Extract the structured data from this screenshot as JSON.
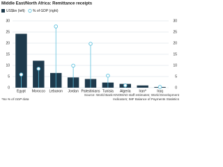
{
  "chart_data": {
    "type": "bar",
    "title": "Middle East/North Africa: Remittance receipts",
    "categories": [
      "Egypt",
      "Morocco",
      "Lebanon",
      "Jordan",
      "Palestinians",
      "Tunisia",
      "Algeria",
      "Iran*",
      "Iraq"
    ],
    "series": [
      {
        "name": "US$bn (left)",
        "color": "#1e3a4c",
        "values": [
          24.2,
          12.1,
          6.6,
          4.6,
          3.9,
          2.3,
          1.7,
          1.0,
          0.3
        ]
      },
      {
        "name": "% of GDP (right)",
        "color": "#5cc0dd",
        "axis": "y2",
        "values": [
          5.9,
          8.5,
          27.5,
          9.9,
          19.7,
          5.4,
          1.0,
          null,
          0.3
        ]
      }
    ],
    "ylim": [
      0,
      30
    ],
    "yticks": [
      0,
      5,
      10,
      15,
      20,
      25,
      30
    ],
    "y2lim": [
      0,
      30
    ],
    "y2ticks": [
      0,
      5,
      10,
      15,
      20,
      25,
      30
    ],
    "grid": true,
    "source": "Source: World Bank-KNOMAD staff estimates; World Development Indicators; IMF Balance of Payments Statistics",
    "footnote": "*No % of GDP data"
  }
}
